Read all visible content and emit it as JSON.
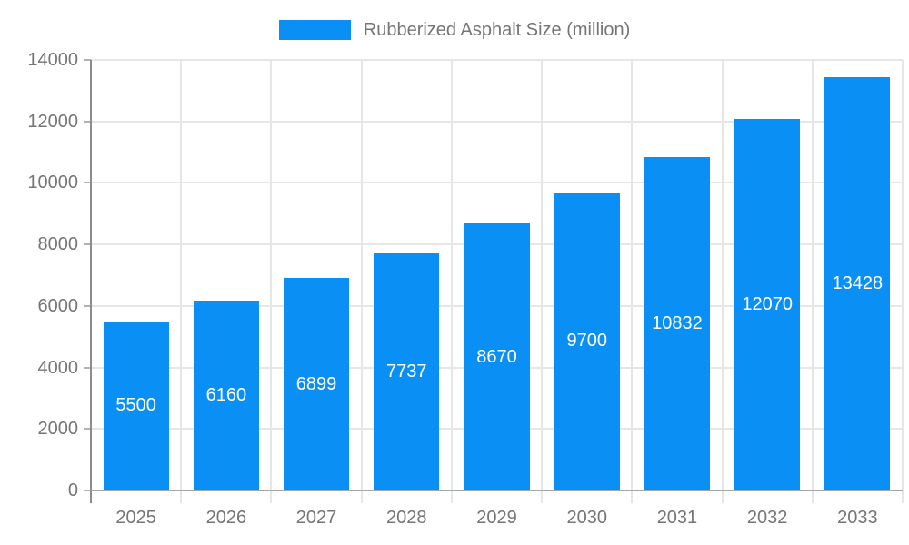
{
  "legend": {
    "label": "Rubberized Asphalt Size (million)"
  },
  "chart_data": {
    "type": "bar",
    "title": "Rubberized Asphalt Size (million)",
    "categories": [
      "2025",
      "2026",
      "2027",
      "2028",
      "2029",
      "2030",
      "2031",
      "2032",
      "2033"
    ],
    "values": [
      5500,
      6160,
      6899,
      7737,
      8670,
      9700,
      10832,
      12070,
      13428
    ],
    "xlabel": "",
    "ylabel": "",
    "ylim": [
      0,
      14000
    ],
    "ytick_step": 2000,
    "ytick_labels": [
      "0",
      "2000",
      "4000",
      "6000",
      "8000",
      "10000",
      "12000",
      "14000"
    ],
    "grid": true,
    "legend_position": "top",
    "bar_color": "#0a90f5",
    "bar_label_color": "#ffffff",
    "axis_text_color": "#757575",
    "grid_color": "#e6e6e6",
    "y_axis_line_color": "#8c8c8c",
    "x_axis_line_color": "#a6a6a6"
  }
}
